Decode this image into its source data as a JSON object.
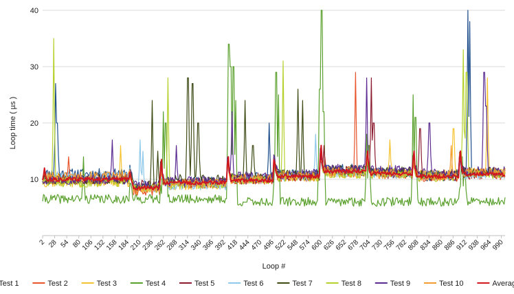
{
  "chart_data": {
    "type": "line",
    "title": "",
    "xlabel": "Loop #",
    "ylabel": "Loop time ( µs )",
    "ylim": [
      0,
      40
    ],
    "yticks": [
      10,
      20,
      30,
      40
    ],
    "xlim": [
      2,
      998
    ],
    "xtick_labels": [
      "2",
      "28",
      "54",
      "80",
      "106",
      "132",
      "158",
      "184",
      "210",
      "236",
      "262",
      "288",
      "314",
      "340",
      "366",
      "392",
      "418",
      "444",
      "470",
      "496",
      "522",
      "548",
      "574",
      "600",
      "626",
      "652",
      "678",
      "704",
      "730",
      "756",
      "782",
      "808",
      "834",
      "860",
      "886",
      "912",
      "938",
      "964",
      "990"
    ],
    "grid": "horizontal",
    "legend_position": "bottom",
    "segments": [
      2,
      190,
      255,
      400,
      500,
      600,
      700,
      800,
      900,
      998
    ],
    "series": [
      {
        "name": "Test 1",
        "color": "#1f4e8c",
        "seed": 11,
        "base": [
          11.0,
          9.0,
          9.5,
          10.3,
          10.8,
          11.8,
          11.2,
          10.6,
          11.0,
          10.5
        ],
        "noise": 0.9,
        "spikes": [
          [
            30,
            27
          ],
          [
            33,
            20
          ],
          [
            490,
            20
          ],
          [
            918,
            40
          ],
          [
            922,
            38
          ]
        ]
      },
      {
        "name": "Test 2",
        "color": "#e8532a",
        "seed": 23,
        "base": [
          10.0,
          8.0,
          9.3,
          10.0,
          10.5,
          11.2,
          11.0,
          10.5,
          10.8,
          10.2
        ],
        "noise": 0.9,
        "spikes": [
          [
            58,
            14
          ],
          [
            172,
            6.8
          ],
          [
            176,
            6.8
          ],
          [
            610,
            14
          ],
          [
            676,
            29
          ]
        ]
      },
      {
        "name": "Test 3",
        "color": "#f5c230",
        "seed": 37,
        "base": [
          9.5,
          8.5,
          9.0,
          10.0,
          10.5,
          11.0,
          11.2,
          10.8,
          11.2,
          10.6
        ],
        "noise": 0.9,
        "spikes": [
          [
            170,
            16
          ],
          [
            750,
            17
          ],
          [
            887,
            19
          ],
          [
            960,
            28
          ]
        ]
      },
      {
        "name": "Test 4",
        "color": "#5aa02c",
        "seed": 41,
        "base": [
          6.5,
          6.5,
          6.5,
          6.0,
          6.0,
          6.0,
          6.0,
          6.0,
          6.0,
          6.0
        ],
        "noise": 0.8,
        "spikes": [
          [
            90,
            14
          ],
          [
            262,
            22
          ],
          [
            267,
            20
          ],
          [
            403,
            34
          ],
          [
            407,
            30
          ],
          [
            413,
            30
          ],
          [
            418,
            24
          ],
          [
            505,
            29
          ],
          [
            510,
            25
          ],
          [
            599,
            26
          ],
          [
            603,
            40
          ],
          [
            607,
            22
          ],
          [
            700,
            18
          ],
          [
            705,
            16
          ],
          [
            800,
            25
          ],
          [
            805,
            21
          ],
          [
            905,
            14
          ],
          [
            911,
            12
          ]
        ]
      },
      {
        "name": "Test 5",
        "color": "#8b1a2e",
        "seed": 53,
        "base": [
          10.0,
          9.0,
          9.3,
          10.0,
          10.6,
          11.5,
          11.0,
          10.6,
          11.0,
          10.4
        ],
        "noise": 0.9,
        "spikes": [
          [
            608,
            16
          ],
          [
            710,
            28
          ],
          [
            715,
            20
          ],
          [
            815,
            19
          ]
        ]
      },
      {
        "name": "Test 6",
        "color": "#8ec8ea",
        "seed": 67,
        "base": [
          10.5,
          8.5,
          9.0,
          10.0,
          10.6,
          11.3,
          11.1,
          10.7,
          11.0,
          10.3
        ],
        "noise": 0.9,
        "spikes": [
          [
            212,
            17
          ],
          [
            218,
            15
          ],
          [
            590,
            18
          ]
        ]
      },
      {
        "name": "Test 7",
        "color": "#3d4a14",
        "seed": 79,
        "base": [
          10.0,
          8.8,
          10.0,
          10.3,
          10.8,
          11.6,
          11.3,
          10.9,
          11.3,
          10.8
        ],
        "noise": 0.9,
        "spikes": [
          [
            238,
            24
          ],
          [
            250,
            15
          ],
          [
            315,
            28
          ],
          [
            325,
            27
          ],
          [
            337,
            20
          ],
          [
            438,
            24
          ],
          [
            455,
            16
          ],
          [
            552,
            26
          ],
          [
            562,
            24
          ]
        ]
      },
      {
        "name": "Test 8",
        "color": "#b5d12e",
        "seed": 83,
        "base": [
          9.5,
          8.5,
          9.2,
          10.0,
          10.5,
          11.1,
          11.0,
          10.5,
          11.0,
          10.4
        ],
        "noise": 0.9,
        "spikes": [
          [
            26,
            35
          ],
          [
            272,
            28
          ],
          [
            520,
            31
          ],
          [
            908,
            33
          ],
          [
            915,
            29
          ]
        ]
      },
      {
        "name": "Test 9",
        "color": "#5b2b91",
        "seed": 97,
        "base": [
          10.0,
          8.8,
          9.6,
          10.4,
          10.9,
          11.8,
          11.6,
          11.0,
          11.4,
          10.8
        ],
        "noise": 0.9,
        "spikes": [
          [
            152,
            17
          ],
          [
            290,
            16
          ],
          [
            410,
            22
          ],
          [
            700,
            28
          ],
          [
            835,
            20
          ],
          [
            953,
            29
          ],
          [
            957,
            23
          ]
        ]
      },
      {
        "name": "Test 10",
        "color": "#f29b30",
        "seed": 101,
        "base": [
          10.5,
          8.3,
          9.3,
          10.1,
          10.6,
          11.4,
          11.0,
          10.6,
          11.2,
          10.5
        ],
        "noise": 0.9,
        "spikes": [
          [
            882,
            16
          ]
        ]
      },
      {
        "name": "Average",
        "color": "#d0161f",
        "seed": 113,
        "base": [
          10.0,
          8.5,
          9.4,
          9.8,
          10.5,
          11.4,
          11.0,
          10.5,
          10.9,
          10.3
        ],
        "noise": 0.35,
        "width": 2,
        "spikes": [
          [
            6,
            12
          ],
          [
            258,
            13.5
          ],
          [
            402,
            14
          ],
          [
            502,
            13
          ],
          [
            602,
            16
          ],
          [
            702,
            15
          ],
          [
            802,
            15
          ],
          [
            902,
            15
          ]
        ]
      }
    ]
  }
}
